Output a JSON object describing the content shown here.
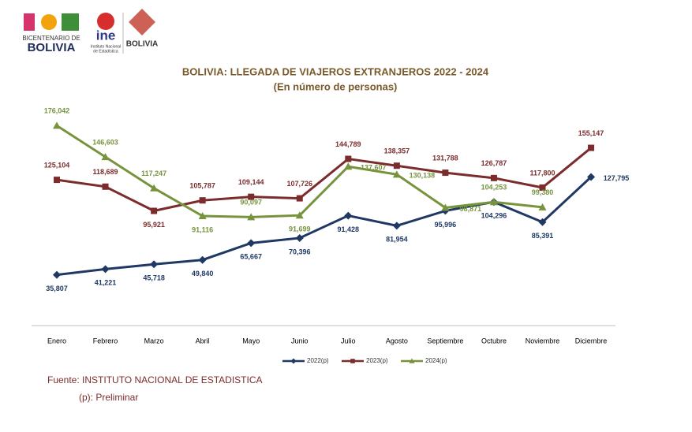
{
  "logos": {
    "bicentenario_line1": "BICENTENARIO DE",
    "bicentenario_line2": "BOLIVIA",
    "ine": "ine",
    "ine_sub1": "Instituto Nacional",
    "ine_sub2": "de Estadística",
    "bolivia": "BOLIVIA"
  },
  "chart_data": {
    "type": "line",
    "title": "BOLIVIA: LLEGADA DE VIAJEROS EXTRANJEROS 2022 - 2024",
    "subtitle": "(En número de personas)",
    "categories": [
      "Enero",
      "Febrero",
      "Marzo",
      "Abril",
      "Mayo",
      "Junio",
      "Julio",
      "Agosto",
      "Septiembre",
      "Octubre",
      "Noviembre",
      "Diciembre"
    ],
    "ylim": [
      0,
      200000
    ],
    "series": [
      {
        "name": "2022(p)",
        "color": "#1f3864",
        "marker": "diamond",
        "values": [
          35807,
          41221,
          45718,
          49840,
          65667,
          70396,
          91428,
          81954,
          95996,
          104296,
          85391,
          127795
        ],
        "value_labels": [
          "35,807",
          "41,221",
          "45,718",
          "49,840",
          "65,667",
          "70,396",
          "91,428",
          "81,954",
          "95,996",
          "104,296",
          "85,391",
          "127,795"
        ]
      },
      {
        "name": "2023(p)",
        "color": "#7b2c2c",
        "marker": "square",
        "values": [
          125104,
          118689,
          95921,
          105787,
          109144,
          107726,
          144789,
          138357,
          131788,
          126787,
          117800,
          155147
        ],
        "value_labels": [
          "125,104",
          "118,689",
          "95,921",
          "105,787",
          "109,144",
          "107,726",
          "144,789",
          "138,357",
          "131,788",
          "126,787",
          "117,800",
          "155,147"
        ]
      },
      {
        "name": "2024(p)",
        "color": "#77933c",
        "marker": "triangle",
        "values": [
          176042,
          146603,
          117247,
          91116,
          90097,
          91699,
          137607,
          130138,
          98871,
          104253,
          99380,
          null
        ],
        "value_labels": [
          "176,042",
          "146,603",
          "117,247",
          "91,116",
          "90,097",
          "91,699",
          "137,607",
          "130,138",
          "98,871",
          "104,253",
          "99,380",
          null
        ]
      }
    ],
    "source": "Fuente: INSTITUTO NACIONAL DE ESTADISTICA",
    "note": "(p): Preliminar"
  }
}
